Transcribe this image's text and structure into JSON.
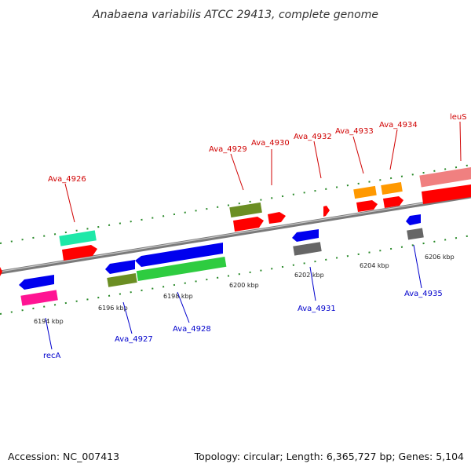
{
  "title": "Anabaena variabilis ATCC 29413, complete genome",
  "footer": {
    "accession": "Accession: NC_007413",
    "summary": "Topology: circular; Length: 6,365,727 bp; Genes: 5,104"
  },
  "colors": {
    "backbone": "#8a8a8a",
    "forward_label": "#d00000",
    "reverse_label": "#0000cc",
    "tick": "#2a8a2a"
  },
  "ruler": {
    "labels": [
      "6194 kbp",
      "6196 kbp",
      "6198 kbp",
      "6200 kbp",
      "6202 kbp",
      "6204 kbp",
      "6206 kbp"
    ]
  },
  "gene_labels": {
    "forward": [
      "Ava_4926",
      "Ava_4929",
      "Ava_4930",
      "Ava_4932",
      "Ava_4933",
      "Ava_4934",
      "leuS"
    ],
    "reverse": [
      "recA",
      "Ava_4927",
      "Ava_4928",
      "Ava_4931",
      "Ava_4935"
    ]
  }
}
